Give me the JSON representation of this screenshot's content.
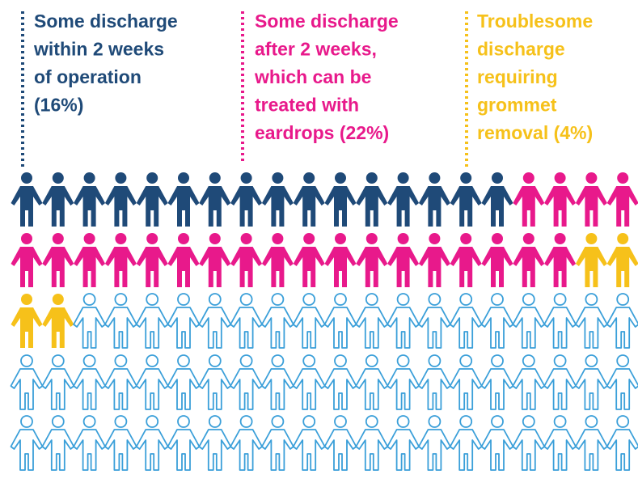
{
  "chart_data": {
    "type": "pictogram",
    "total": 100,
    "rest_color": "#3a9fd9",
    "series": [
      {
        "lines": [
          "Some discharge",
          "within 2 weeks",
          "of operation"
        ],
        "value": 16,
        "value_label": "(16%)",
        "color": "#1f4a78"
      },
      {
        "lines": [
          "Some discharge",
          "after 2 weeks,",
          "which can be",
          "treated with",
          "eardrops"
        ],
        "value": 22,
        "value_label": "(22%)",
        "color": "#e8198b"
      },
      {
        "lines": [
          "Troublesome",
          "discharge",
          "requiring",
          "grommet",
          "removal"
        ],
        "value": 4,
        "value_label": "(4%)",
        "color": "#f6c11a"
      }
    ]
  }
}
